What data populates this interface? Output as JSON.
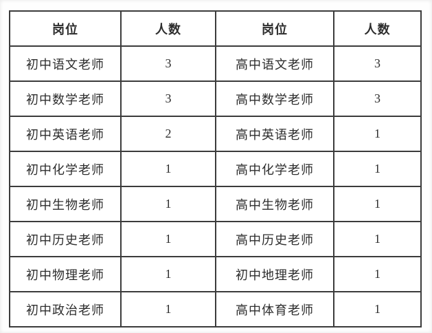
{
  "table": {
    "headers": [
      "岗位",
      "人数",
      "岗位",
      "人数"
    ],
    "rows": [
      [
        "初中语文老师",
        "3",
        "高中语文老师",
        "3"
      ],
      [
        "初中数学老师",
        "3",
        "高中数学老师",
        "3"
      ],
      [
        "初中英语老师",
        "2",
        "高中英语老师",
        "1"
      ],
      [
        "初中化学老师",
        "1",
        "高中化学老师",
        "1"
      ],
      [
        "初中生物老师",
        "1",
        "高中生物老师",
        "1"
      ],
      [
        "初中历史老师",
        "1",
        "高中历史老师",
        "1"
      ],
      [
        "初中物理老师",
        "1",
        "初中地理老师",
        "1"
      ],
      [
        "初中政治老师",
        "1",
        "高中体育老师",
        "1"
      ]
    ]
  },
  "colors": {
    "border": "#3b3b3b",
    "text": "#2d2d2d",
    "background": "#ffffff"
  }
}
